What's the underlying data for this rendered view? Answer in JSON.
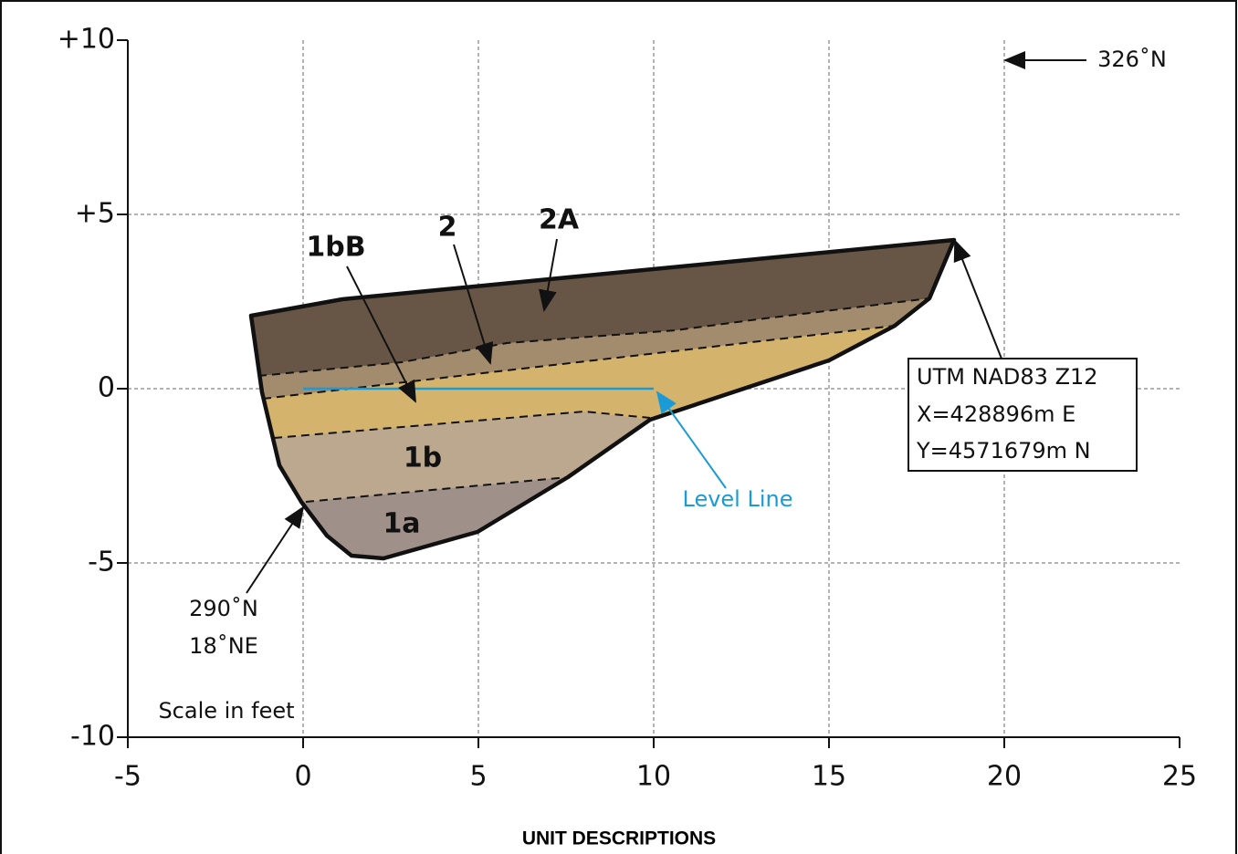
{
  "axes": {
    "y_tick_labels": [
      "+10",
      "+5",
      "0",
      "-5",
      "-10"
    ],
    "x_tick_labels": [
      "-5",
      "0",
      "5",
      "10",
      "15",
      "20",
      "25"
    ],
    "scale_note": "Scale in feet"
  },
  "units": {
    "u2A": "2A",
    "u2": "2",
    "u1bB": "1bB",
    "u1b": "1b",
    "u1a": "1a"
  },
  "annotations": {
    "level_line": "Level Line",
    "north_arrow": "326˚N",
    "strike_dip": [
      "290˚N",
      "18˚NE"
    ],
    "location": [
      "UTM NAD83 Z12",
      "X=428896m E",
      "Y=4571679m N"
    ]
  },
  "footer": {
    "title": "UNIT DESCRIPTIONS"
  }
}
